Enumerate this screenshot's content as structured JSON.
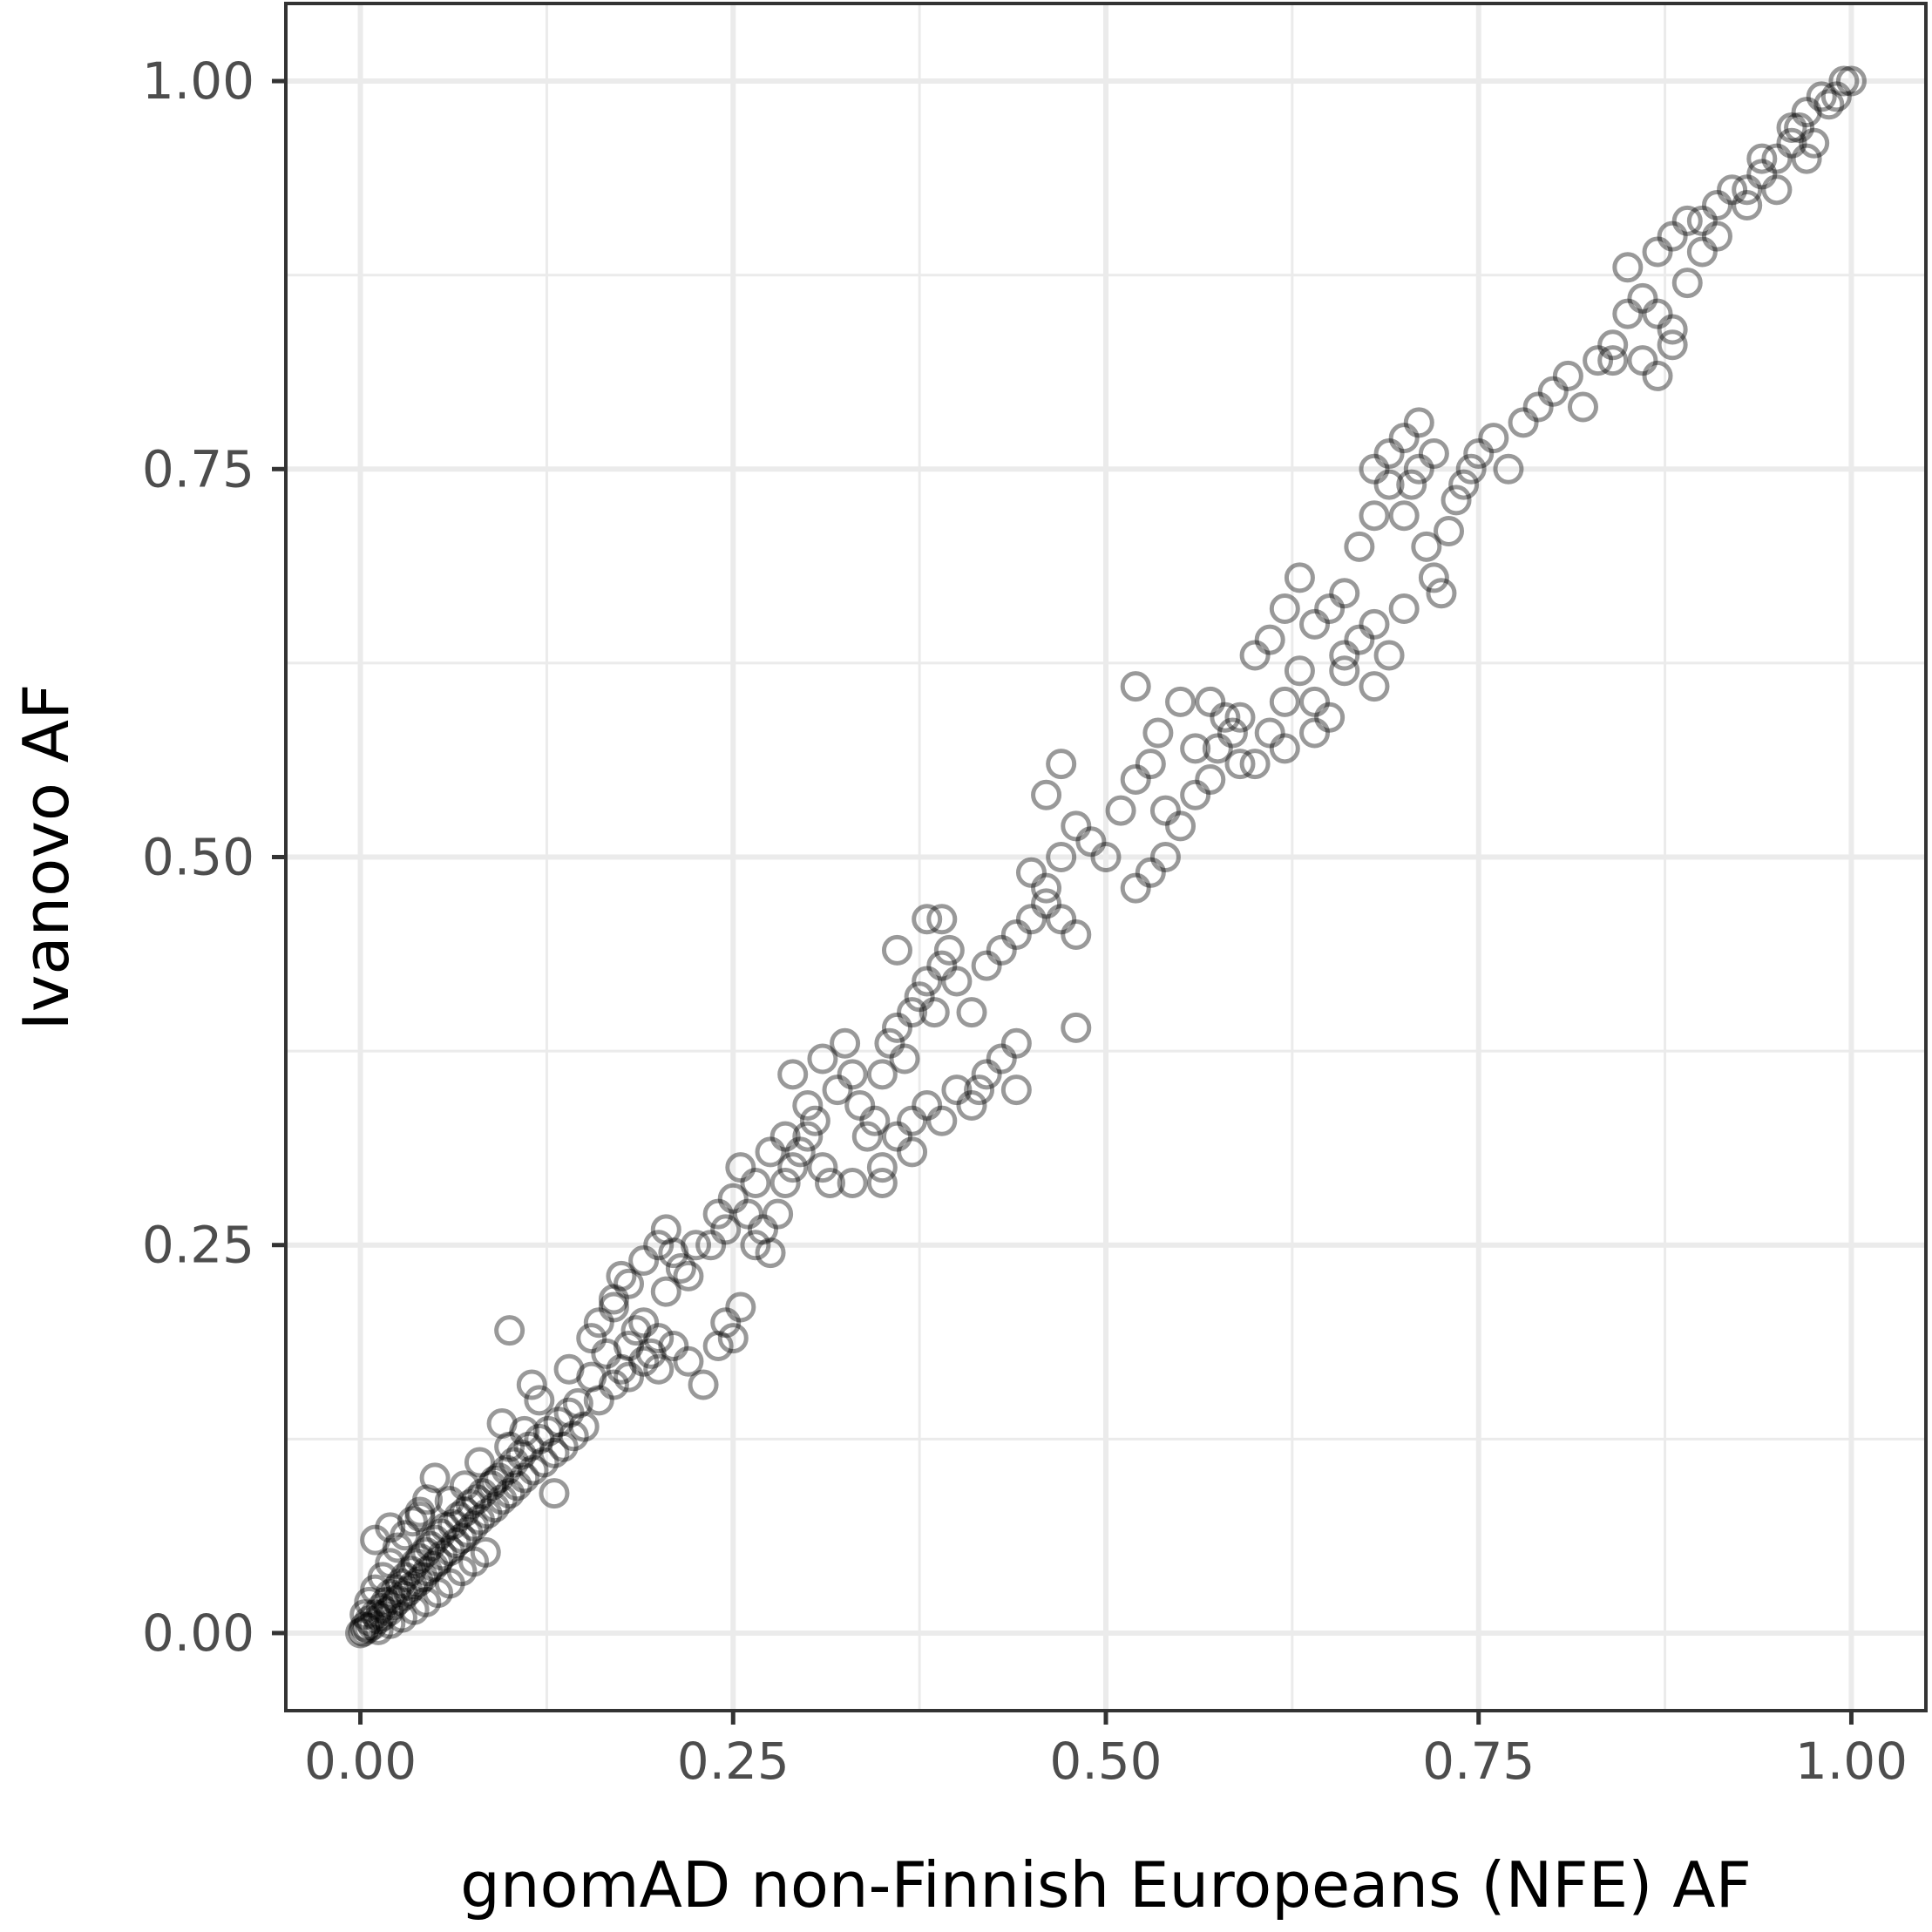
{
  "chart_data": {
    "type": "scatter",
    "title": "",
    "xlabel": "gnomAD non-Finnish Europeans (NFE) AF",
    "ylabel": "Ivanovo AF",
    "xlim": [
      -0.05,
      1.05
    ],
    "ylim": [
      -0.05,
      1.05
    ],
    "x_ticks": [
      "0.00",
      "0.25",
      "0.50",
      "0.75",
      "1.00"
    ],
    "y_ticks": [
      "0.00",
      "0.25",
      "0.50",
      "0.75",
      "1.00"
    ],
    "grid": true,
    "legend": "none",
    "point_style": {
      "shape": "hollow-circle",
      "color": "#000000",
      "alpha": 0.4
    },
    "series": [
      {
        "points": [
          [
            0.0,
            0.0
          ],
          [
            0.002,
            0.001
          ],
          [
            0.003,
            0.004
          ],
          [
            0.005,
            0.003
          ],
          [
            0.006,
            0.008
          ],
          [
            0.008,
            0.005
          ],
          [
            0.01,
            0.012
          ],
          [
            0.012,
            0.009
          ],
          [
            0.014,
            0.016
          ],
          [
            0.015,
            0.011
          ],
          [
            0.017,
            0.02
          ],
          [
            0.019,
            0.014
          ],
          [
            0.02,
            0.025
          ],
          [
            0.022,
            0.018
          ],
          [
            0.024,
            0.028
          ],
          [
            0.025,
            0.021
          ],
          [
            0.027,
            0.032
          ],
          [
            0.029,
            0.024
          ],
          [
            0.03,
            0.036
          ],
          [
            0.032,
            0.027
          ],
          [
            0.034,
            0.04
          ],
          [
            0.035,
            0.03
          ],
          [
            0.037,
            0.045
          ],
          [
            0.039,
            0.033
          ],
          [
            0.04,
            0.048
          ],
          [
            0.042,
            0.036
          ],
          [
            0.044,
            0.052
          ],
          [
            0.045,
            0.04
          ],
          [
            0.047,
            0.056
          ],
          [
            0.049,
            0.043
          ],
          [
            0.05,
            0.06
          ],
          [
            0.052,
            0.046
          ],
          [
            0.054,
            0.064
          ],
          [
            0.055,
            0.05
          ],
          [
            0.057,
            0.068
          ],
          [
            0.06,
            0.053
          ],
          [
            0.062,
            0.07
          ],
          [
            0.064,
            0.058
          ],
          [
            0.066,
            0.075
          ],
          [
            0.068,
            0.061
          ],
          [
            0.07,
            0.078
          ],
          [
            0.072,
            0.065
          ],
          [
            0.074,
            0.083
          ],
          [
            0.076,
            0.069
          ],
          [
            0.078,
            0.086
          ],
          [
            0.08,
            0.073
          ],
          [
            0.082,
            0.09
          ],
          [
            0.085,
            0.077
          ],
          [
            0.088,
            0.095
          ],
          [
            0.09,
            0.081
          ],
          [
            0.093,
            0.1
          ],
          [
            0.095,
            0.086
          ],
          [
            0.098,
            0.105
          ],
          [
            0.1,
            0.09
          ],
          [
            0.103,
            0.11
          ],
          [
            0.105,
            0.095
          ],
          [
            0.108,
            0.115
          ],
          [
            0.11,
            0.1
          ],
          [
            0.113,
            0.12
          ],
          [
            0.116,
            0.105
          ],
          [
            0.12,
            0.125
          ],
          [
            0.123,
            0.11
          ],
          [
            0.126,
            0.13
          ],
          [
            0.13,
            0.116
          ],
          [
            0.133,
            0.136
          ],
          [
            0.136,
            0.12
          ],
          [
            0.14,
            0.142
          ],
          [
            0.143,
            0.127
          ],
          [
            0.146,
            0.148
          ],
          [
            0.15,
            0.133
          ],
          [
            0.003,
            0.012
          ],
          [
            0.006,
            0.02
          ],
          [
            0.01,
            0.028
          ],
          [
            0.015,
            0.036
          ],
          [
            0.02,
            0.045
          ],
          [
            0.025,
            0.055
          ],
          [
            0.03,
            0.063
          ],
          [
            0.035,
            0.072
          ],
          [
            0.04,
            0.078
          ],
          [
            0.045,
            0.086
          ],
          [
            0.012,
            0.002
          ],
          [
            0.02,
            0.006
          ],
          [
            0.028,
            0.01
          ],
          [
            0.036,
            0.015
          ],
          [
            0.044,
            0.02
          ],
          [
            0.052,
            0.026
          ],
          [
            0.06,
            0.032
          ],
          [
            0.068,
            0.04
          ],
          [
            0.076,
            0.046
          ],
          [
            0.084,
            0.052
          ],
          [
            0.01,
            0.06
          ],
          [
            0.05,
            0.1
          ],
          [
            0.08,
            0.11
          ],
          [
            0.1,
            0.12
          ],
          [
            0.02,
            0.068
          ],
          [
            0.04,
            0.075
          ],
          [
            0.06,
            0.085
          ],
          [
            0.07,
            0.095
          ],
          [
            0.09,
            0.098
          ],
          [
            0.11,
            0.13
          ],
          [
            0.1,
            0.195
          ],
          [
            0.12,
            0.15
          ],
          [
            0.13,
            0.09
          ],
          [
            0.095,
            0.135
          ],
          [
            0.115,
            0.16
          ],
          [
            0.14,
            0.17
          ],
          [
            0.155,
            0.165
          ],
          [
            0.16,
            0.15
          ],
          [
            0.165,
            0.18
          ],
          [
            0.17,
            0.16
          ],
          [
            0.155,
            0.19
          ],
          [
            0.16,
            0.2
          ],
          [
            0.17,
            0.21
          ],
          [
            0.175,
            0.17
          ],
          [
            0.18,
            0.185
          ],
          [
            0.185,
            0.195
          ],
          [
            0.19,
            0.2
          ],
          [
            0.195,
            0.18
          ],
          [
            0.2,
            0.19
          ],
          [
            0.205,
            0.22
          ],
          [
            0.17,
            0.215
          ],
          [
            0.175,
            0.23
          ],
          [
            0.18,
            0.225
          ],
          [
            0.19,
            0.24
          ],
          [
            0.2,
            0.25
          ],
          [
            0.205,
            0.26
          ],
          [
            0.21,
            0.245
          ],
          [
            0.215,
            0.235
          ],
          [
            0.22,
            0.23
          ],
          [
            0.225,
            0.25
          ],
          [
            0.18,
            0.165
          ],
          [
            0.19,
            0.175
          ],
          [
            0.2,
            0.17
          ],
          [
            0.21,
            0.185
          ],
          [
            0.22,
            0.175
          ],
          [
            0.23,
            0.16
          ],
          [
            0.24,
            0.185
          ],
          [
            0.245,
            0.2
          ],
          [
            0.25,
            0.19
          ],
          [
            0.255,
            0.21
          ],
          [
            0.235,
            0.25
          ],
          [
            0.24,
            0.27
          ],
          [
            0.245,
            0.26
          ],
          [
            0.25,
            0.28
          ],
          [
            0.26,
            0.27
          ],
          [
            0.265,
            0.25
          ],
          [
            0.27,
            0.26
          ],
          [
            0.275,
            0.245
          ],
          [
            0.28,
            0.27
          ],
          [
            0.285,
            0.29
          ],
          [
            0.255,
            0.3
          ],
          [
            0.265,
            0.29
          ],
          [
            0.275,
            0.31
          ],
          [
            0.285,
            0.32
          ],
          [
            0.29,
            0.3
          ],
          [
            0.295,
            0.31
          ],
          [
            0.3,
            0.32
          ],
          [
            0.305,
            0.33
          ],
          [
            0.31,
            0.3
          ],
          [
            0.315,
            0.29
          ],
          [
            0.29,
            0.36
          ],
          [
            0.3,
            0.34
          ],
          [
            0.31,
            0.37
          ],
          [
            0.32,
            0.35
          ],
          [
            0.325,
            0.38
          ],
          [
            0.33,
            0.36
          ],
          [
            0.335,
            0.34
          ],
          [
            0.34,
            0.32
          ],
          [
            0.345,
            0.33
          ],
          [
            0.35,
            0.3
          ],
          [
            0.35,
            0.36
          ],
          [
            0.355,
            0.38
          ],
          [
            0.36,
            0.39
          ],
          [
            0.365,
            0.37
          ],
          [
            0.37,
            0.4
          ],
          [
            0.375,
            0.41
          ],
          [
            0.38,
            0.42
          ],
          [
            0.385,
            0.4
          ],
          [
            0.39,
            0.43
          ],
          [
            0.395,
            0.44
          ],
          [
            0.36,
            0.32
          ],
          [
            0.37,
            0.33
          ],
          [
            0.38,
            0.34
          ],
          [
            0.39,
            0.33
          ],
          [
            0.4,
            0.35
          ],
          [
            0.41,
            0.34
          ],
          [
            0.415,
            0.35
          ],
          [
            0.42,
            0.36
          ],
          [
            0.43,
            0.37
          ],
          [
            0.44,
            0.38
          ],
          [
            0.38,
            0.46
          ],
          [
            0.39,
            0.46
          ],
          [
            0.36,
            0.44
          ],
          [
            0.33,
            0.29
          ],
          [
            0.35,
            0.29
          ],
          [
            0.37,
            0.31
          ],
          [
            0.48,
            0.39
          ],
          [
            0.44,
            0.35
          ],
          [
            0.41,
            0.4
          ],
          [
            0.4,
            0.42
          ],
          [
            0.42,
            0.43
          ],
          [
            0.43,
            0.44
          ],
          [
            0.44,
            0.45
          ],
          [
            0.45,
            0.46
          ],
          [
            0.46,
            0.47
          ],
          [
            0.47,
            0.46
          ],
          [
            0.48,
            0.45
          ],
          [
            0.45,
            0.49
          ],
          [
            0.46,
            0.48
          ],
          [
            0.47,
            0.5
          ],
          [
            0.46,
            0.54
          ],
          [
            0.47,
            0.56
          ],
          [
            0.48,
            0.52
          ],
          [
            0.49,
            0.51
          ],
          [
            0.5,
            0.5
          ],
          [
            0.51,
            0.53
          ],
          [
            0.52,
            0.55
          ],
          [
            0.53,
            0.56
          ],
          [
            0.535,
            0.58
          ],
          [
            0.54,
            0.53
          ],
          [
            0.52,
            0.48
          ],
          [
            0.53,
            0.49
          ],
          [
            0.54,
            0.5
          ],
          [
            0.55,
            0.52
          ],
          [
            0.56,
            0.54
          ],
          [
            0.57,
            0.55
          ],
          [
            0.575,
            0.57
          ],
          [
            0.58,
            0.59
          ],
          [
            0.585,
            0.58
          ],
          [
            0.59,
            0.56
          ],
          [
            0.6,
            0.56
          ],
          [
            0.61,
            0.58
          ],
          [
            0.62,
            0.6
          ],
          [
            0.63,
            0.62
          ],
          [
            0.64,
            0.6
          ],
          [
            0.65,
            0.59
          ],
          [
            0.66,
            0.62
          ],
          [
            0.67,
            0.64
          ],
          [
            0.68,
            0.65
          ],
          [
            0.69,
            0.63
          ],
          [
            0.6,
            0.63
          ],
          [
            0.61,
            0.64
          ],
          [
            0.62,
            0.66
          ],
          [
            0.63,
            0.68
          ],
          [
            0.64,
            0.65
          ],
          [
            0.65,
            0.66
          ],
          [
            0.66,
            0.67
          ],
          [
            0.67,
            0.7
          ],
          [
            0.68,
            0.72
          ],
          [
            0.69,
            0.74
          ],
          [
            0.7,
            0.72
          ],
          [
            0.705,
            0.74
          ],
          [
            0.71,
            0.75
          ],
          [
            0.715,
            0.7
          ],
          [
            0.72,
            0.68
          ],
          [
            0.725,
            0.67
          ],
          [
            0.73,
            0.71
          ],
          [
            0.735,
            0.73
          ],
          [
            0.74,
            0.74
          ],
          [
            0.745,
            0.75
          ],
          [
            0.68,
            0.75
          ],
          [
            0.69,
            0.76
          ],
          [
            0.7,
            0.77
          ],
          [
            0.71,
            0.78
          ],
          [
            0.72,
            0.76
          ],
          [
            0.75,
            0.76
          ],
          [
            0.76,
            0.77
          ],
          [
            0.77,
            0.75
          ],
          [
            0.78,
            0.78
          ],
          [
            0.79,
            0.79
          ],
          [
            0.8,
            0.8
          ],
          [
            0.81,
            0.81
          ],
          [
            0.82,
            0.79
          ],
          [
            0.83,
            0.82
          ],
          [
            0.84,
            0.83
          ],
          [
            0.85,
            0.85
          ],
          [
            0.86,
            0.86
          ],
          [
            0.87,
            0.85
          ],
          [
            0.88,
            0.84
          ],
          [
            0.89,
            0.87
          ],
          [
            0.84,
            0.82
          ],
          [
            0.86,
            0.82
          ],
          [
            0.87,
            0.81
          ],
          [
            0.88,
            0.83
          ],
          [
            0.85,
            0.88
          ],
          [
            0.87,
            0.89
          ],
          [
            0.88,
            0.9
          ],
          [
            0.89,
            0.91
          ],
          [
            0.9,
            0.89
          ],
          [
            0.9,
            0.91
          ],
          [
            0.91,
            0.92
          ],
          [
            0.92,
            0.93
          ],
          [
            0.93,
            0.93
          ],
          [
            0.94,
            0.94
          ],
          [
            0.95,
            0.95
          ],
          [
            0.96,
            0.96
          ],
          [
            0.965,
            0.97
          ],
          [
            0.97,
            0.98
          ],
          [
            0.98,
            0.99
          ],
          [
            0.99,
            0.99
          ],
          [
            0.995,
            1.0
          ],
          [
            1.0,
            1.0
          ],
          [
            0.985,
            0.985
          ],
          [
            0.975,
            0.96
          ],
          [
            0.96,
            0.97
          ],
          [
            0.94,
            0.95
          ],
          [
            0.93,
            0.92
          ],
          [
            0.91,
            0.9
          ],
          [
            0.95,
            0.93
          ],
          [
            0.97,
            0.95
          ],
          [
            0.52,
            0.61
          ],
          [
            0.55,
            0.6
          ],
          [
            0.56,
            0.57
          ],
          [
            0.57,
            0.6
          ],
          [
            0.59,
            0.59
          ],
          [
            0.62,
            0.57
          ],
          [
            0.64,
            0.58
          ],
          [
            0.66,
            0.63
          ],
          [
            0.68,
            0.61
          ],
          [
            0.7,
            0.66
          ]
        ]
      }
    ]
  }
}
